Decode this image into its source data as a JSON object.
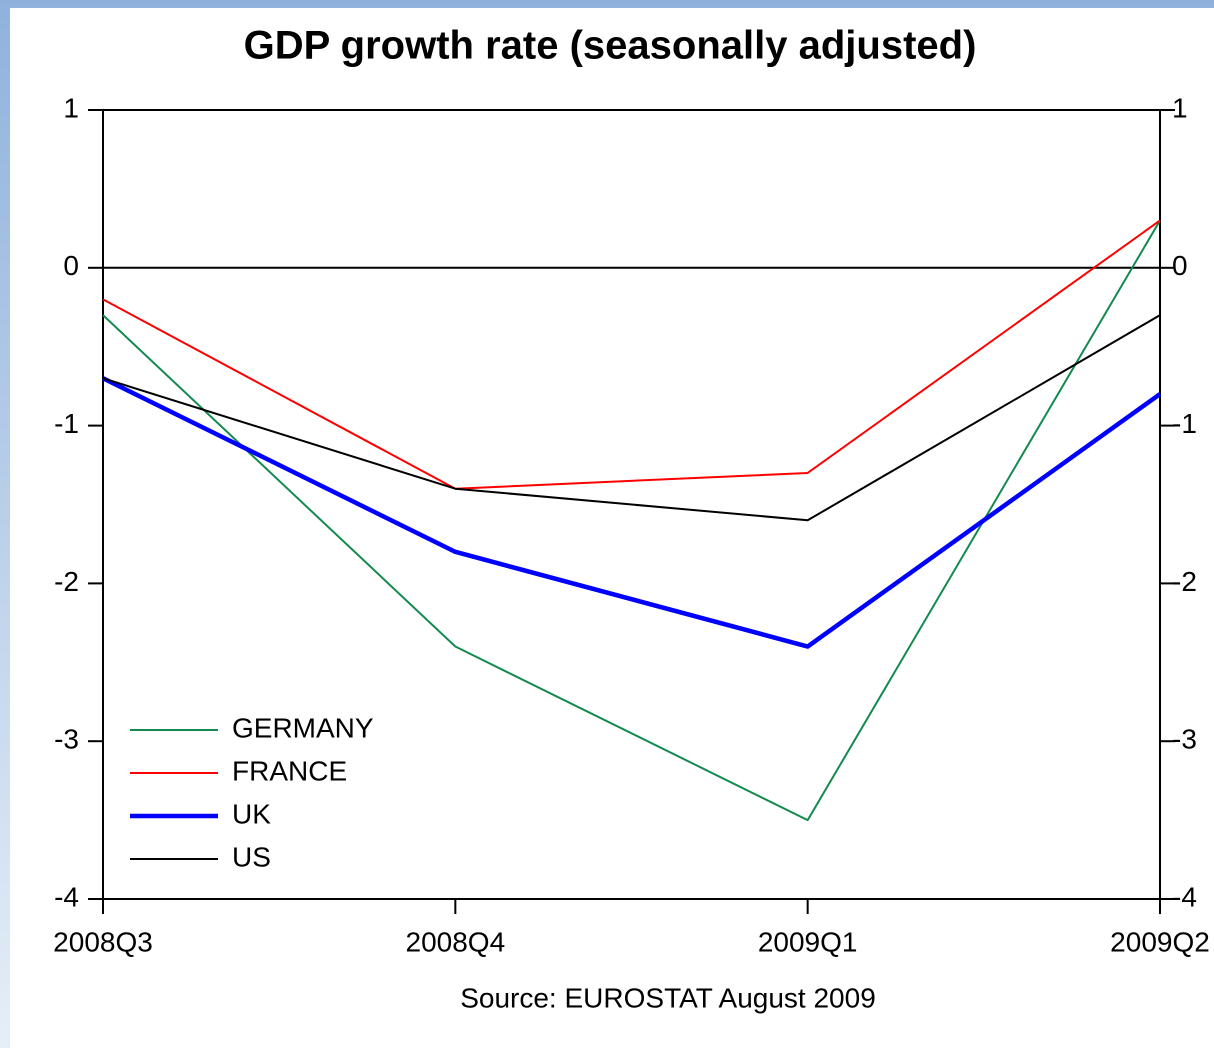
{
  "chart_data": {
    "type": "line",
    "title": "GDP growth rate (seasonally adjusted)",
    "annotation": "Source: EUROSTAT August 2009",
    "categories": [
      "2008Q3",
      "2008Q4",
      "2009Q1",
      "2009Q2"
    ],
    "series": [
      {
        "name": "GERMANY",
        "color": "#138a4e",
        "line_width": 2,
        "values": [
          -0.3,
          -2.4,
          -3.5,
          0.3
        ]
      },
      {
        "name": "FRANCE",
        "color": "#ff0000",
        "line_width": 2,
        "values": [
          -0.2,
          -1.4,
          -1.3,
          0.3
        ]
      },
      {
        "name": "UK",
        "color": "#0000ff",
        "line_width": 4.5,
        "values": [
          -0.7,
          -1.8,
          -2.4,
          -0.8
        ]
      },
      {
        "name": "US",
        "color": "#000000",
        "line_width": 2,
        "values": [
          -0.7,
          -1.4,
          -1.6,
          -0.3
        ]
      }
    ],
    "ylim": [
      -4,
      1
    ],
    "yticks": [
      -4,
      -3,
      -2,
      -1,
      0,
      1
    ],
    "y2lim": [
      -4,
      1
    ],
    "y2ticks": [
      -4,
      -3,
      -2,
      -1,
      0,
      1
    ],
    "zero_line": true,
    "legend": "lower left"
  }
}
